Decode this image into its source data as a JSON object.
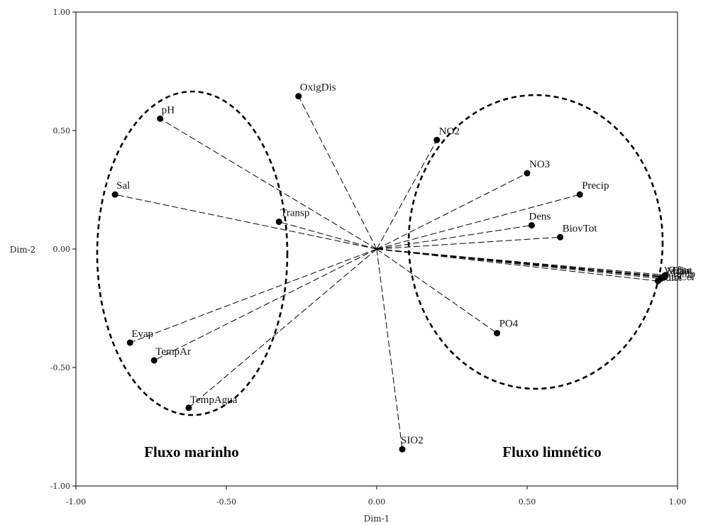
{
  "chart_data": {
    "type": "scatter",
    "xlabel": "Dim-1",
    "ylabel": "Dim-2",
    "xlim": [
      -1.0,
      1.0
    ],
    "ylim": [
      -1.0,
      1.0
    ],
    "xticks": [
      "-1.00",
      "-0.50",
      "0.00",
      "0.50",
      "1.00"
    ],
    "yticks": [
      "1.00",
      "0.50",
      "0.00",
      "-0.50",
      "-1.00"
    ],
    "grid": false,
    "vectors_from_origin": true,
    "points": [
      {
        "label": "OxigDis",
        "x": -0.26,
        "y": 0.645
      },
      {
        "label": "pH",
        "x": -0.72,
        "y": 0.55
      },
      {
        "label": "Sal",
        "x": -0.87,
        "y": 0.23
      },
      {
        "label": "Transp",
        "x": -0.325,
        "y": 0.115
      },
      {
        "label": "Evap",
        "x": -0.82,
        "y": -0.395
      },
      {
        "label": "TempAr",
        "x": -0.74,
        "y": -0.47
      },
      {
        "label": "TempAgua",
        "x": -0.625,
        "y": -0.67
      },
      {
        "label": "NO2",
        "x": 0.2,
        "y": 0.46
      },
      {
        "label": "NO3",
        "x": 0.5,
        "y": 0.32
      },
      {
        "label": "Precip",
        "x": 0.675,
        "y": 0.23
      },
      {
        "label": "Dens",
        "x": 0.515,
        "y": 0.1
      },
      {
        "label": "BiovTot",
        "x": 0.61,
        "y": 0.05
      },
      {
        "label": "PO4",
        "x": 0.4,
        "y": -0.355
      },
      {
        "label": "SIO2",
        "x": 0.085,
        "y": -0.845
      },
      {
        "label": "Mdiat",
        "x": 0.955,
        "y": -0.115
      },
      {
        "label": "Tfito",
        "x": 0.96,
        "y": -0.11
      },
      {
        "label": "Vazao",
        "x": 0.95,
        "y": -0.12
      },
      {
        "label": "Temp",
        "x": 0.958,
        "y": -0.118
      },
      {
        "label": "FitoCel",
        "x": 0.945,
        "y": -0.125
      },
      {
        "label": "Ndiat",
        "x": 0.935,
        "y": -0.135
      }
    ],
    "groups": [
      {
        "name": "Fluxo marinho"
      },
      {
        "name": "Fluxo limnético"
      }
    ]
  }
}
